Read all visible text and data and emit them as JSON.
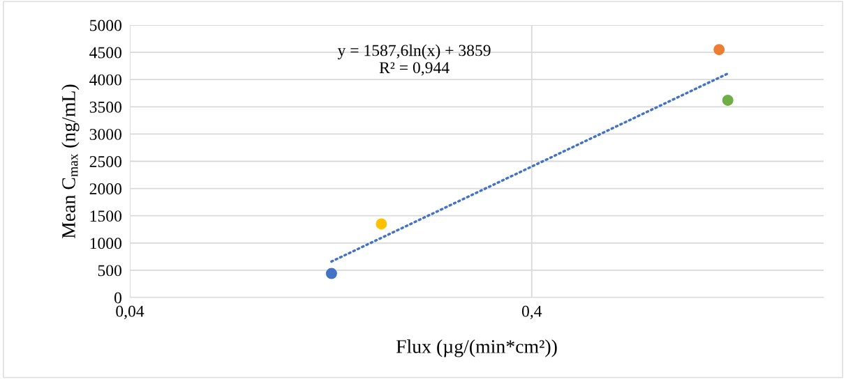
{
  "chart_data": {
    "type": "scatter",
    "xlabel": "Flux (µg/(min*cm²))",
    "ylabel": "Mean C$_{max}$ (ng/mL)",
    "log": "x",
    "xlim": [
      0.04,
      2.13
    ],
    "xticks": [
      {
        "value": 0.04,
        "label": "0,04"
      },
      {
        "value": 0.4,
        "label": "0,4"
      }
    ],
    "ylim": [
      0,
      5000
    ],
    "yticks": [
      0,
      500,
      1000,
      1500,
      2000,
      2500,
      3000,
      3500,
      4000,
      4500,
      5000
    ],
    "grid": true,
    "series": [
      {
        "marker": "circle",
        "x": [
          0.127,
          0.169,
          1.17,
          1.23
        ],
        "values": [
          440,
          1350,
          4550,
          3620
        ],
        "colors": [
          "#4472c4",
          "#ffc000",
          "#ed7d31",
          "#70ad47"
        ]
      },
      {
        "type": "line",
        "marker": "none",
        "x": [
          0.127,
          1.23
        ],
        "values": [
          660,
          4110
        ],
        "color": "#4472c4",
        "line_style": "dotted"
      }
    ],
    "annotations": [
      "y = 1587,6ln(x) + 3859\nR² = 0,944"
    ]
  }
}
